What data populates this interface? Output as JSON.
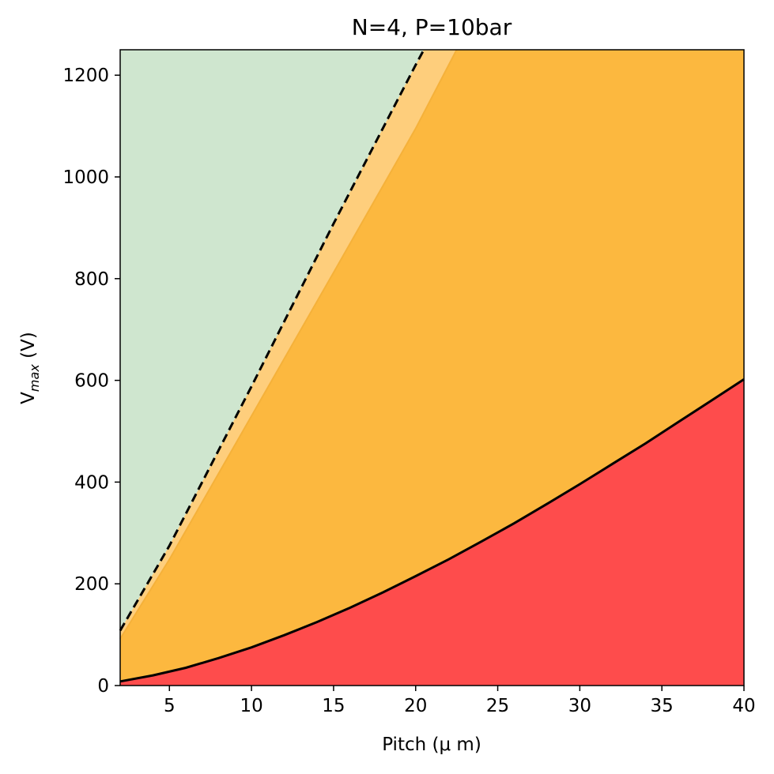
{
  "chart_data": {
    "type": "area",
    "title": "N=4, P=10bar",
    "xlabel": "Pitch (μ m)",
    "ylabel_main": "V",
    "ylabel_sub": "max",
    "ylabel_unit": " (V)",
    "xlim": [
      2,
      40
    ],
    "ylim": [
      0,
      1250
    ],
    "xticks": [
      5,
      10,
      15,
      20,
      25,
      30,
      35,
      40
    ],
    "yticks": [
      0,
      200,
      400,
      600,
      800,
      1000,
      1200
    ],
    "grid": false,
    "series": [
      {
        "x": [
          2,
          4,
          6,
          8,
          10,
          12,
          14,
          16,
          18,
          20,
          22,
          24,
          26,
          28,
          30,
          32,
          34,
          36,
          38,
          40
        ],
        "values": [
          8,
          20,
          35,
          54,
          75,
          99,
          125,
          153,
          183,
          215,
          248,
          283,
          319,
          357,
          396,
          436,
          476,
          518,
          560,
          602
        ],
        "color": "#000000",
        "style": "solid"
      },
      {
        "x": [
          2,
          5,
          10,
          15,
          20,
          20.5
        ],
        "values": [
          108,
          275,
          588,
          908,
          1220,
          1250
        ],
        "color": "#000000",
        "style": "dashed"
      },
      {
        "x": [
          2,
          5,
          10,
          15,
          20,
          22.5
        ],
        "values": [
          92,
          248,
          530,
          812,
          1095,
          1250
        ],
        "color": "#fbb83b",
        "style": "boundary"
      }
    ],
    "colors": {
      "green_region": "#cfe6cf",
      "light_orange_band": "#fece7c",
      "orange_region": "#fcb83f",
      "red_region": "#fe4c4c"
    }
  }
}
